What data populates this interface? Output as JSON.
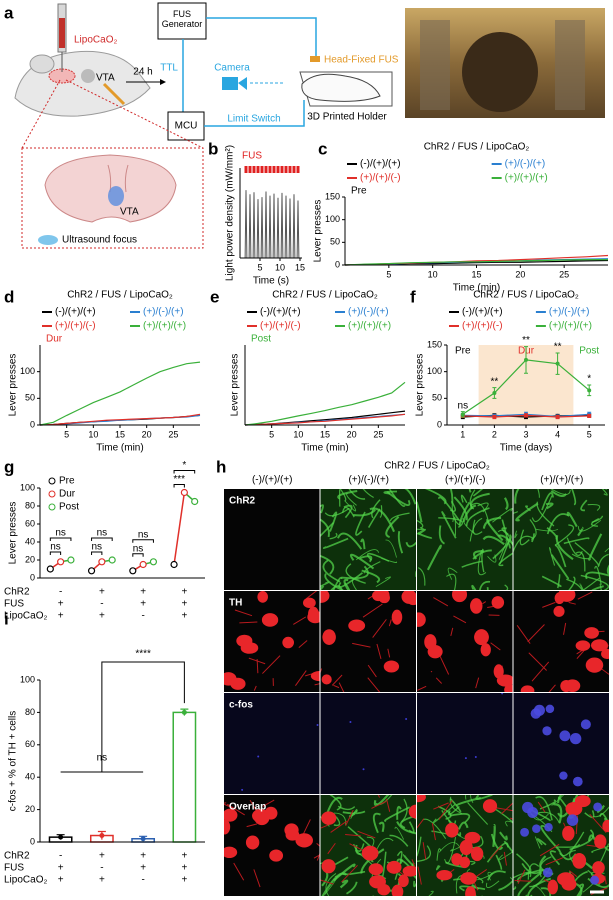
{
  "panel_a": {
    "label": "a",
    "drug": "LipoCaO₂",
    "target": "VTA",
    "delay": "24 h",
    "generator": "FUS Generator",
    "ttl": "TTL",
    "camera": "Camera",
    "transducer": "Head-Fixed FUS",
    "controller": "MCU",
    "switch": "Limit Switch",
    "holder": "3D Printed Holder",
    "section_target": "VTA",
    "focus": "Ultrasound focus"
  },
  "chart_data": [
    {
      "type": "spike",
      "panel_label": "b",
      "title": "FUS",
      "title_color": "#e02020",
      "ylabel": "Light power density (mW/mm²)",
      "xlabel": "Time (s)",
      "x": [
        1.5,
        2.5,
        3.5,
        4.5,
        5.5,
        6.5,
        7.5,
        8.5,
        9.5,
        10.5,
        11.5,
        12.5,
        13.5,
        14.5
      ],
      "values": [
        0.98,
        0.92,
        0.95,
        0.85,
        0.88,
        0.96,
        0.9,
        0.93,
        0.87,
        0.94,
        0.9,
        0.86,
        0.92,
        0.83
      ],
      "color": "#555555",
      "xlim": [
        0,
        15.5
      ],
      "ylim": [
        0,
        1.3
      ],
      "xticks": [
        5,
        10,
        15
      ]
    },
    {
      "type": "line",
      "panel_label": "c",
      "title": "ChR2 / FUS / LipoCaO₂",
      "annotation": "Pre",
      "annotation_color": "#000000",
      "xlabel": "Time (min)",
      "ylabel": "Lever presses",
      "x": [
        0,
        2.5,
        5,
        7.5,
        10,
        12.5,
        15,
        17.5,
        20,
        22.5,
        25,
        27.5,
        30
      ],
      "xlim": [
        0,
        30
      ],
      "ylim": [
        0,
        150
      ],
      "xticks": [
        5,
        10,
        15,
        20,
        25
      ],
      "yticks": [
        0,
        50,
        100,
        150
      ],
      "series": [
        {
          "name": "(-)/(+)/(+)",
          "color": "#000000",
          "values": [
            0,
            1,
            2,
            3,
            3,
            4,
            5,
            6,
            6,
            7,
            8,
            9,
            10
          ]
        },
        {
          "name": "(+)/(-)/(+)",
          "color": "#2a7fd0",
          "values": [
            0,
            1,
            2,
            4,
            5,
            6,
            7,
            8,
            9,
            11,
            12,
            13,
            14
          ]
        },
        {
          "name": "(+)/(+)/(-)",
          "color": "#e0302a",
          "values": [
            0,
            1,
            3,
            4,
            6,
            7,
            9,
            10,
            12,
            14,
            16,
            18,
            21
          ]
        },
        {
          "name": "(+)/(+)/(+)",
          "color": "#3ab03a",
          "values": [
            0,
            2,
            3,
            5,
            6,
            7,
            7,
            8,
            9,
            10,
            11,
            12,
            12
          ]
        }
      ]
    },
    {
      "type": "line",
      "panel_label": "d",
      "title": "ChR2 / FUS / LipoCaO₂",
      "annotation": "Dur",
      "annotation_color": "#e0302a",
      "xlabel": "Time (min)",
      "ylabel": "Lever presses",
      "x": [
        0,
        2.5,
        5,
        7.5,
        10,
        12.5,
        15,
        17.5,
        20,
        22.5,
        25,
        27.5,
        30
      ],
      "xlim": [
        0,
        30
      ],
      "ylim": [
        0,
        150
      ],
      "xticks": [
        5,
        10,
        15,
        20,
        25
      ],
      "yticks": [
        0,
        50,
        100
      ],
      "series": [
        {
          "name": "(-)/(+)/(+)",
          "color": "#000000",
          "values": [
            0,
            1,
            3,
            5,
            6,
            8,
            9,
            10,
            11,
            13,
            14,
            16,
            18
          ]
        },
        {
          "name": "(+)/(-)/(+)",
          "color": "#2a7fd0",
          "values": [
            0,
            1,
            2,
            4,
            6,
            7,
            9,
            10,
            12,
            13,
            14,
            15,
            18
          ]
        },
        {
          "name": "(+)/(+)/(-)",
          "color": "#e0302a",
          "values": [
            0,
            1,
            3,
            5,
            7,
            9,
            10,
            11,
            12,
            13,
            14,
            16,
            20
          ]
        },
        {
          "name": "(+)/(+)/(+)",
          "color": "#3ab03a",
          "values": [
            0,
            5,
            18,
            30,
            42,
            52,
            62,
            75,
            88,
            100,
            108,
            115,
            118
          ]
        }
      ]
    },
    {
      "type": "line",
      "panel_label": "e",
      "title": "ChR2 / FUS / LipoCaO₂",
      "annotation": "Post",
      "annotation_color": "#3ab03a",
      "xlabel": "Time (min)",
      "ylabel": "Lever presses",
      "x": [
        0,
        2.5,
        5,
        7.5,
        10,
        12.5,
        15,
        17.5,
        20,
        22.5,
        25,
        27.5,
        30
      ],
      "xlim": [
        0,
        30
      ],
      "ylim": [
        0,
        150
      ],
      "xticks": [
        5,
        10,
        15,
        20,
        25
      ],
      "series": [
        {
          "name": "(-)/(+)/(+)",
          "color": "#000000",
          "values": [
            0,
            1,
            2,
            4,
            6,
            8,
            10,
            12,
            14,
            17,
            20,
            23,
            26
          ]
        },
        {
          "name": "(+)/(-)/(+)",
          "color": "#2a7fd0",
          "values": [
            0,
            1,
            2,
            3,
            5,
            6,
            8,
            10,
            12,
            14,
            16,
            18,
            20
          ]
        },
        {
          "name": "(+)/(+)/(-)",
          "color": "#e0302a",
          "values": [
            0,
            1,
            2,
            3,
            4,
            6,
            7,
            9,
            11,
            13,
            15,
            17,
            20
          ]
        },
        {
          "name": "(+)/(+)/(+)",
          "color": "#3ab03a",
          "values": [
            0,
            3,
            7,
            12,
            17,
            22,
            27,
            33,
            38,
            45,
            52,
            60,
            80
          ]
        }
      ]
    },
    {
      "type": "errorline",
      "panel_label": "f",
      "title": "ChR2 / FUS / LipoCaO₂",
      "xlabel": "Time (days)",
      "ylabel": "Lever presses",
      "x": [
        1,
        2,
        3,
        4,
        5
      ],
      "xlim": [
        0.5,
        5.5
      ],
      "ylim": [
        0,
        150
      ],
      "xticks": [
        1,
        2,
        3,
        4,
        5
      ],
      "yticks": [
        0,
        50,
        100,
        150
      ],
      "phases": [
        "Pre",
        "Dur",
        "Post"
      ],
      "phase_colors": [
        "#000000",
        "#e0302a",
        "#3ab03a"
      ],
      "shade_color": "#fbe6cf",
      "significance": [
        "ns",
        "**",
        "**",
        "**",
        "*"
      ],
      "series": [
        {
          "name": "(-)/(+)/(+)",
          "color": "#000000",
          "values": [
            15,
            18,
            15,
            17,
            18
          ],
          "errors": [
            3,
            3,
            3,
            3,
            3
          ]
        },
        {
          "name": "(+)/(-)/(+)",
          "color": "#2a7fd0",
          "values": [
            18,
            17,
            20,
            16,
            20
          ],
          "errors": [
            3,
            3,
            4,
            3,
            4
          ]
        },
        {
          "name": "(+)/(+)/(-)",
          "color": "#e0302a",
          "values": [
            17,
            15,
            18,
            15,
            17
          ],
          "errors": [
            3,
            3,
            3,
            3,
            3
          ]
        },
        {
          "name": "(+)/(+)/(+)",
          "color": "#3ab03a",
          "values": [
            20,
            60,
            122,
            115,
            65
          ],
          "errors": [
            5,
            10,
            25,
            20,
            10
          ]
        }
      ]
    },
    {
      "type": "paired",
      "panel_label": "g",
      "ylabel": "Lever presses",
      "ylim": [
        0,
        100
      ],
      "yticks": [
        0,
        20,
        40,
        60,
        80,
        100
      ],
      "significance": [
        [
          "ns",
          "ns"
        ],
        [
          "ns",
          "ns"
        ],
        [
          "ns",
          "ns"
        ],
        [
          "*",
          "***"
        ]
      ],
      "series": [
        {
          "name": "Pre",
          "color": "#000000",
          "values": [
            10,
            8,
            8,
            15
          ]
        },
        {
          "name": "Dur",
          "color": "#e0302a",
          "values": [
            18,
            18,
            15,
            95
          ]
        },
        {
          "name": "Post",
          "color": "#3ab03a",
          "values": [
            20,
            20,
            18,
            85
          ]
        }
      ],
      "conditions": [
        {
          "name": "ChR2",
          "signs": [
            "-",
            "+",
            "+",
            "+"
          ]
        },
        {
          "name": "FUS",
          "signs": [
            "+",
            "-",
            "+",
            "+"
          ]
        },
        {
          "name": "LipoCaO₂",
          "signs": [
            "+",
            "+",
            "-",
            "+"
          ]
        }
      ]
    },
    {
      "type": "bar",
      "panel_label": "i",
      "ylabel": "c-fos + % of TH + cells",
      "ylim": [
        0,
        100
      ],
      "yticks": [
        0,
        20,
        40,
        60,
        80,
        100
      ],
      "values": [
        3,
        4,
        2,
        80
      ],
      "errors": [
        1.5,
        2.5,
        1.5,
        2
      ],
      "colors": [
        "#000000",
        "#e0302a",
        "#2a5fb0",
        "#3ab03a"
      ],
      "significance": [
        "****",
        "ns"
      ],
      "conditions": [
        {
          "name": "ChR2",
          "signs": [
            "-",
            "+",
            "+",
            "+"
          ]
        },
        {
          "name": "FUS",
          "signs": [
            "+",
            "-",
            "+",
            "+"
          ]
        },
        {
          "name": "LipoCaO₂",
          "signs": [
            "+",
            "+",
            "-",
            "+"
          ]
        }
      ]
    }
  ],
  "panel_h": {
    "label": "h",
    "title": "ChR2 / FUS / LipoCaO₂",
    "columns": [
      "(-)/(+)/(+)",
      "(+)/(-)/(+)",
      "(+)/(+)/(-)",
      "(+)/(+)/(+)"
    ],
    "rows": [
      "ChR2",
      "TH",
      "c-fos",
      "Overlap"
    ]
  }
}
